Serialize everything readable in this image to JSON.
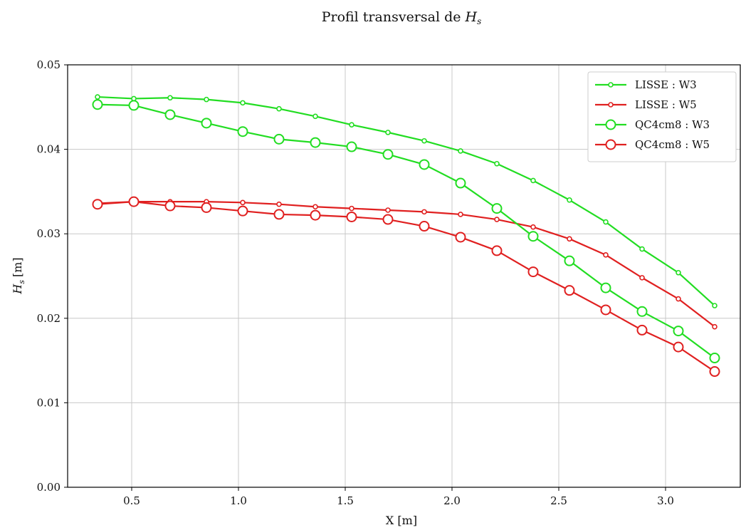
{
  "chart_data": {
    "type": "line",
    "title_prefix": "Profil transversal de ",
    "title_var_main": "H",
    "title_var_sub": "s",
    "xlabel": "X [m]",
    "ylabel_main": "H",
    "ylabel_sub": "s",
    "ylabel_unit": "[m]",
    "xlim": [
      0.2,
      3.35
    ],
    "ylim": [
      0.0,
      0.05
    ],
    "xticks": [
      0.5,
      1.0,
      1.5,
      2.0,
      2.5,
      3.0
    ],
    "xtick_labels": [
      "0.5",
      "1.0",
      "1.5",
      "2.0",
      "2.5",
      "3.0"
    ],
    "yticks": [
      0.0,
      0.01,
      0.02,
      0.03,
      0.04,
      0.05
    ],
    "ytick_labels": [
      "0.00",
      "0.01",
      "0.02",
      "0.03",
      "0.04",
      "0.05"
    ],
    "grid": true,
    "legend_position": "top-right",
    "x": [
      0.34,
      0.51,
      0.68,
      0.85,
      1.02,
      1.19,
      1.36,
      1.53,
      1.7,
      1.87,
      2.04,
      2.21,
      2.38,
      2.55,
      2.72,
      2.89,
      3.06,
      3.23
    ],
    "series": [
      {
        "name": "LISSE : W3",
        "color": "#22dd22",
        "marker": "small",
        "values": [
          0.0462,
          0.046,
          0.0461,
          0.0459,
          0.0455,
          0.0448,
          0.0439,
          0.0429,
          0.042,
          0.041,
          0.0398,
          0.0383,
          0.0363,
          0.034,
          0.0314,
          0.0282,
          0.0254,
          0.0215
        ]
      },
      {
        "name": "LISSE : W5",
        "color": "#e02020",
        "marker": "small",
        "values": [
          0.0336,
          0.0338,
          0.0338,
          0.0338,
          0.0337,
          0.0335,
          0.0332,
          0.033,
          0.0328,
          0.0326,
          0.0323,
          0.0317,
          0.0308,
          0.0294,
          0.0275,
          0.0248,
          0.0223,
          0.019
        ]
      },
      {
        "name": "QC4cm8 : W3",
        "color": "#22dd22",
        "marker": "large",
        "values": [
          0.0453,
          0.0452,
          0.0441,
          0.0431,
          0.0421,
          0.0412,
          0.0408,
          0.0403,
          0.0394,
          0.0382,
          0.036,
          0.033,
          0.0297,
          0.0268,
          0.0236,
          0.0208,
          0.0185,
          0.0153
        ]
      },
      {
        "name": "QC4cm8 : W5",
        "color": "#e02020",
        "marker": "large",
        "values": [
          0.0335,
          0.0338,
          0.0333,
          0.0331,
          0.0327,
          0.0323,
          0.0322,
          0.032,
          0.0317,
          0.0309,
          0.0296,
          0.028,
          0.0255,
          0.0233,
          0.021,
          0.0186,
          0.0166,
          0.0137
        ]
      }
    ]
  }
}
